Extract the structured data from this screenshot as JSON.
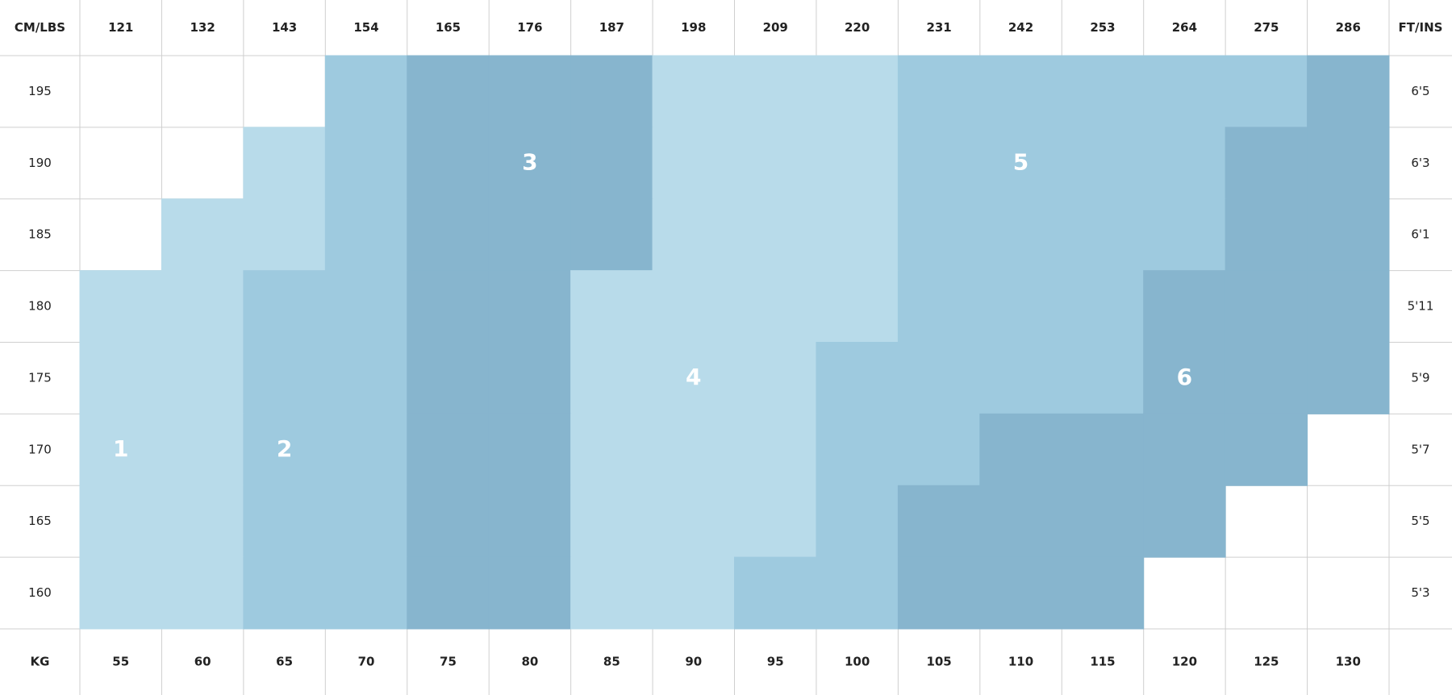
{
  "header": {
    "left": "CM/LBS",
    "right": "FT/INS"
  },
  "footer": {
    "left": "KG"
  },
  "lbs": [
    "121",
    "132",
    "143",
    "154",
    "165",
    "176",
    "187",
    "198",
    "209",
    "220",
    "231",
    "242",
    "253",
    "264",
    "275",
    "286"
  ],
  "kg": [
    "55",
    "60",
    "65",
    "70",
    "75",
    "80",
    "85",
    "90",
    "95",
    "100",
    "105",
    "110",
    "115",
    "120",
    "125",
    "130"
  ],
  "cm": [
    "195",
    "190",
    "185",
    "180",
    "175",
    "170",
    "165",
    "160"
  ],
  "ftins": [
    "6'5",
    "6'3",
    "6'1",
    "5'11",
    "5'9",
    "5'7",
    "5'5",
    "5'3"
  ],
  "sizes": [
    "1",
    "2",
    "3",
    "4",
    "5",
    "6"
  ],
  "size_colors": [
    "#b8dbea",
    "#9ecadf",
    "#87b5ce",
    "#b8dbea",
    "#9ecadf",
    "#87b5ce"
  ],
  "grid": [
    [
      null,
      null,
      null,
      2,
      3,
      3,
      3,
      4,
      4,
      4,
      5,
      5,
      5,
      5,
      5,
      6
    ],
    [
      null,
      null,
      1,
      2,
      3,
      3,
      3,
      4,
      4,
      4,
      5,
      5,
      5,
      5,
      6,
      6
    ],
    [
      null,
      1,
      1,
      2,
      3,
      3,
      3,
      4,
      4,
      4,
      5,
      5,
      5,
      5,
      6,
      6
    ],
    [
      1,
      1,
      2,
      2,
      3,
      3,
      4,
      4,
      4,
      4,
      5,
      5,
      5,
      6,
      6,
      6
    ],
    [
      1,
      1,
      2,
      2,
      3,
      3,
      4,
      4,
      4,
      5,
      5,
      5,
      5,
      6,
      6,
      6
    ],
    [
      1,
      1,
      2,
      2,
      3,
      3,
      4,
      4,
      4,
      5,
      5,
      6,
      6,
      6,
      6,
      null
    ],
    [
      1,
      1,
      2,
      2,
      3,
      3,
      4,
      4,
      4,
      5,
      6,
      6,
      6,
      6,
      null,
      null
    ],
    [
      1,
      1,
      2,
      2,
      3,
      3,
      4,
      4,
      5,
      5,
      6,
      6,
      6,
      null,
      null,
      null
    ]
  ]
}
